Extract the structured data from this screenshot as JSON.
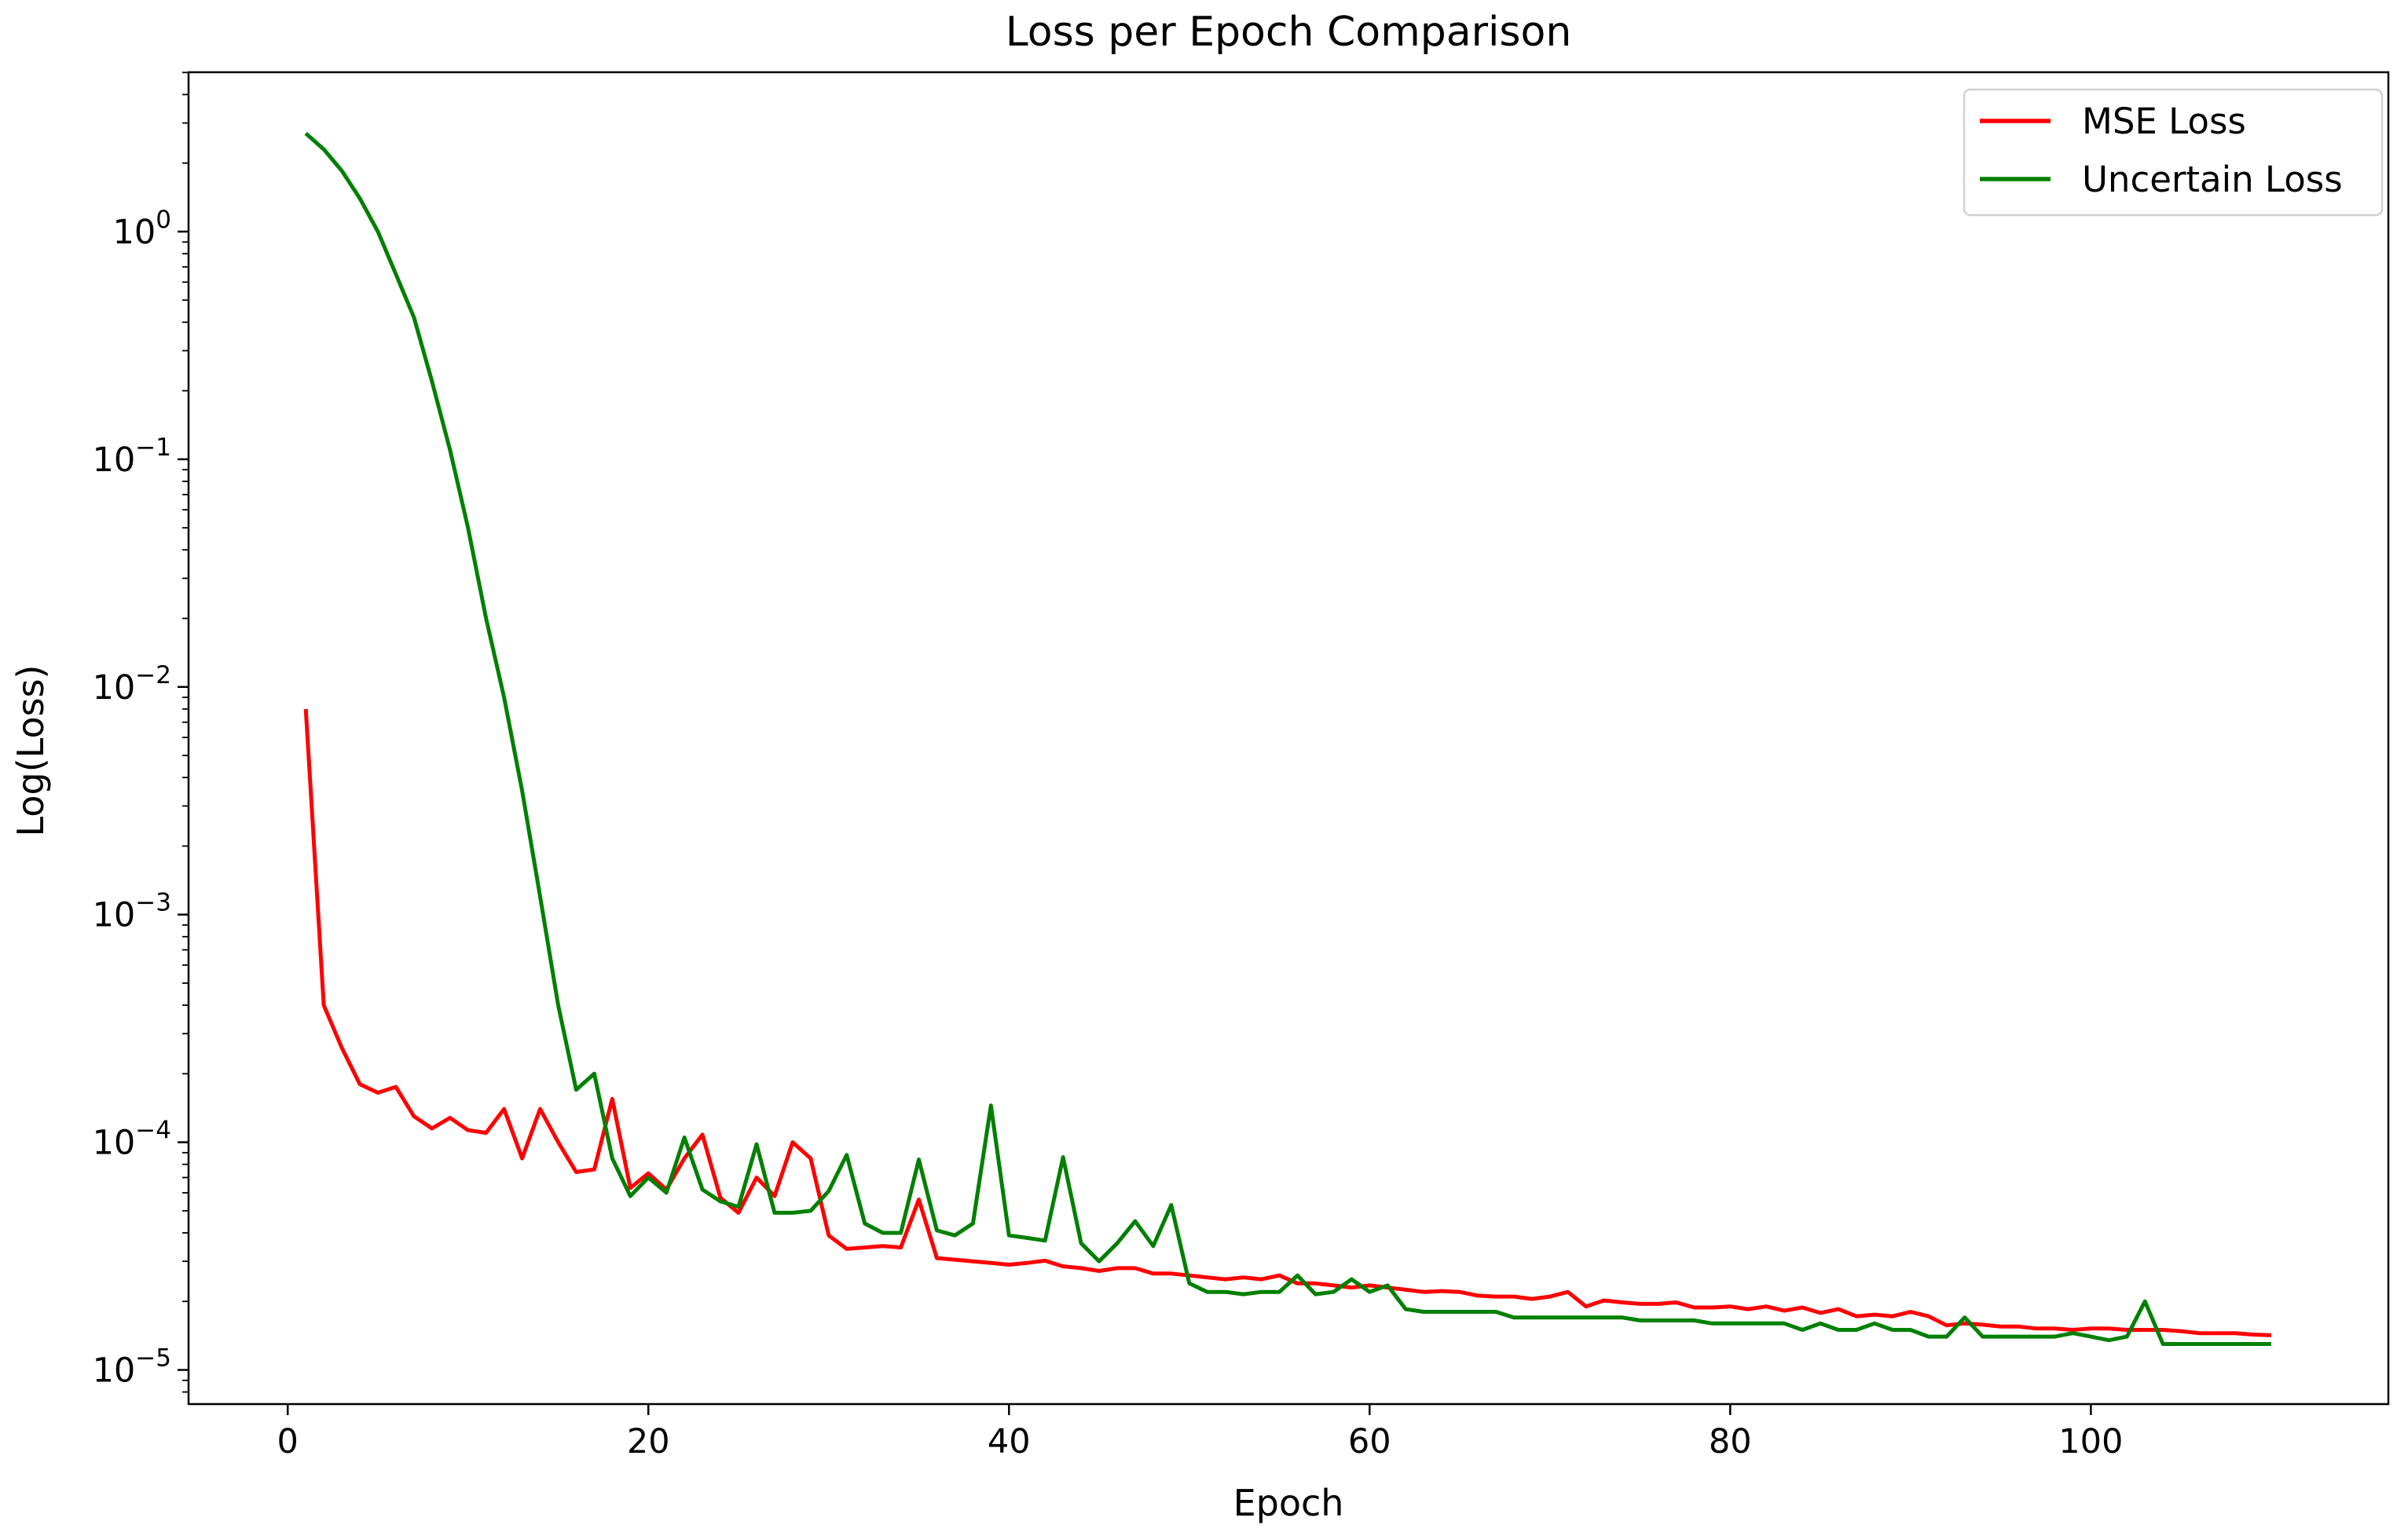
{
  "chart_data": {
    "type": "line",
    "title": "Loss per Epoch Comparison",
    "xlabel": "Epoch",
    "ylabel": "Log(Loss)",
    "xlim": [
      -5.5,
      116.5
    ],
    "ylim_log10": [
      -5.15,
      0.7
    ],
    "y_scale": "log",
    "grid": false,
    "legend_position": "top-right",
    "x_ticks": [
      {
        "value": 0,
        "label": "0"
      },
      {
        "value": 20,
        "label": "20"
      },
      {
        "value": 40,
        "label": "40"
      },
      {
        "value": 60,
        "label": "60"
      },
      {
        "value": 80,
        "label": "80"
      },
      {
        "value": 100,
        "label": "100"
      }
    ],
    "y_ticks": [
      {
        "exp": 0,
        "base": "10",
        "sup": "0"
      },
      {
        "exp": -1,
        "base": "10",
        "sup": "−1"
      },
      {
        "exp": -2,
        "base": "10",
        "sup": "−2"
      },
      {
        "exp": -3,
        "base": "10",
        "sup": "−3"
      },
      {
        "exp": -4,
        "base": "10",
        "sup": "−4"
      },
      {
        "exp": -5,
        "base": "10",
        "sup": "−5"
      }
    ],
    "series": [
      {
        "name": "MSE Loss",
        "color": "#ff0000",
        "x": [
          1,
          2,
          3,
          4,
          5,
          6,
          7,
          8,
          9,
          10,
          11,
          12,
          13,
          14,
          15,
          16,
          17,
          18,
          19,
          20,
          21,
          22,
          23,
          24,
          25,
          26,
          27,
          28,
          29,
          30,
          31,
          32,
          33,
          34,
          35,
          36,
          37,
          38,
          39,
          40,
          41,
          42,
          43,
          44,
          45,
          46,
          47,
          48,
          49,
          50,
          51,
          52,
          53,
          54,
          55,
          56,
          57,
          58,
          59,
          60,
          61,
          62,
          63,
          64,
          65,
          66,
          67,
          68,
          69,
          70,
          71,
          72,
          73,
          74,
          75,
          76,
          77,
          78,
          79,
          80,
          81,
          82,
          83,
          84,
          85,
          86,
          87,
          88,
          89,
          90,
          91,
          92,
          93,
          94,
          95,
          96,
          97,
          98,
          99,
          100,
          101,
          102,
          103,
          104,
          105,
          106,
          107,
          108,
          109,
          110
        ],
        "y": [
          0.008,
          0.0004,
          0.00026,
          0.00018,
          0.000165,
          0.000175,
          0.00013,
          0.000115,
          0.000128,
          0.000113,
          0.00011,
          0.00014,
          8.5e-05,
          0.00014,
          0.0001,
          7.4e-05,
          7.6e-05,
          0.000155,
          6.3e-05,
          7.3e-05,
          6.2e-05,
          8.5e-05,
          0.000108,
          5.7e-05,
          4.9e-05,
          7e-05,
          5.8e-05,
          0.0001,
          8.5e-05,
          3.9e-05,
          3.4e-05,
          3.45e-05,
          3.5e-05,
          3.45e-05,
          5.6e-05,
          3.1e-05,
          3.05e-05,
          3e-05,
          2.95e-05,
          2.9e-05,
          2.95e-05,
          3.02e-05,
          2.85e-05,
          2.8e-05,
          2.72e-05,
          2.8e-05,
          2.8e-05,
          2.65e-05,
          2.65e-05,
          2.6e-05,
          2.55e-05,
          2.5e-05,
          2.55e-05,
          2.5e-05,
          2.6e-05,
          2.4e-05,
          2.4e-05,
          2.35e-05,
          2.3e-05,
          2.35e-05,
          2.3e-05,
          2.25e-05,
          2.2e-05,
          2.22e-05,
          2.2e-05,
          2.12e-05,
          2.1e-05,
          2.1e-05,
          2.05e-05,
          2.1e-05,
          2.2e-05,
          1.9e-05,
          2.02e-05,
          1.98e-05,
          1.95e-05,
          1.95e-05,
          1.98e-05,
          1.88e-05,
          1.88e-05,
          1.9e-05,
          1.85e-05,
          1.9e-05,
          1.82e-05,
          1.88e-05,
          1.78e-05,
          1.85e-05,
          1.72e-05,
          1.75e-05,
          1.72e-05,
          1.8e-05,
          1.72e-05,
          1.57e-05,
          1.6e-05,
          1.58e-05,
          1.55e-05,
          1.55e-05,
          1.52e-05,
          1.52e-05,
          1.5e-05,
          1.52e-05,
          1.52e-05,
          1.5e-05,
          1.5e-05,
          1.5e-05,
          1.48e-05,
          1.45e-05,
          1.45e-05,
          1.45e-05,
          1.43e-05,
          1.42e-05
        ]
      },
      {
        "name": "Uncertain Loss",
        "color": "#008000",
        "x": [
          1,
          2,
          3,
          4,
          5,
          6,
          7,
          8,
          9,
          10,
          11,
          12,
          13,
          14,
          15,
          16,
          17,
          18,
          19,
          20,
          21,
          22,
          23,
          24,
          25,
          26,
          27,
          28,
          29,
          30,
          31,
          32,
          33,
          34,
          35,
          36,
          37,
          38,
          39,
          40,
          41,
          42,
          43,
          44,
          45,
          46,
          47,
          48,
          49,
          50,
          51,
          52,
          53,
          54,
          55,
          56,
          57,
          58,
          59,
          60,
          61,
          62,
          63,
          64,
          65,
          66,
          67,
          68,
          69,
          70,
          71,
          72,
          73,
          74,
          75,
          76,
          77,
          78,
          79,
          80,
          81,
          82,
          83,
          84,
          85,
          86,
          87,
          88,
          89,
          90,
          91,
          92,
          93,
          94,
          95,
          96,
          97,
          98,
          99,
          100,
          101,
          102,
          103,
          104,
          105,
          106,
          107,
          108,
          109,
          110
        ],
        "y": [
          2.7,
          2.3,
          1.85,
          1.4,
          1.0,
          0.65,
          0.42,
          0.22,
          0.11,
          0.05,
          0.02,
          0.009,
          0.0035,
          0.0012,
          0.0004,
          0.00017,
          0.0002,
          8.5e-05,
          5.8e-05,
          7e-05,
          6e-05,
          0.000105,
          6.2e-05,
          5.5e-05,
          5.2e-05,
          9.8e-05,
          4.9e-05,
          4.9e-05,
          5e-05,
          6.1e-05,
          8.8e-05,
          4.4e-05,
          4e-05,
          4e-05,
          8.4e-05,
          4.1e-05,
          3.9e-05,
          4.4e-05,
          0.000145,
          3.9e-05,
          3.8e-05,
          3.7e-05,
          8.6e-05,
          3.6e-05,
          3e-05,
          3.6e-05,
          4.5e-05,
          3.5e-05,
          5.3e-05,
          2.4e-05,
          2.2e-05,
          2.2e-05,
          2.15e-05,
          2.2e-05,
          2.2e-05,
          2.6e-05,
          2.15e-05,
          2.2e-05,
          2.5e-05,
          2.2e-05,
          2.35e-05,
          1.85e-05,
          1.8e-05,
          1.8e-05,
          1.8e-05,
          1.8e-05,
          1.8e-05,
          1.7e-05,
          1.7e-05,
          1.7e-05,
          1.7e-05,
          1.7e-05,
          1.7e-05,
          1.7e-05,
          1.65e-05,
          1.65e-05,
          1.65e-05,
          1.65e-05,
          1.6e-05,
          1.6e-05,
          1.6e-05,
          1.6e-05,
          1.6e-05,
          1.5e-05,
          1.6e-05,
          1.5e-05,
          1.5e-05,
          1.6e-05,
          1.5e-05,
          1.5e-05,
          1.4e-05,
          1.4e-05,
          1.7e-05,
          1.4e-05,
          1.4e-05,
          1.4e-05,
          1.4e-05,
          1.4e-05,
          1.45e-05,
          1.4e-05,
          1.35e-05,
          1.4e-05,
          2e-05,
          1.3e-05,
          1.3e-05,
          1.3e-05,
          1.3e-05,
          1.3e-05,
          1.3e-05,
          1.3e-05
        ]
      }
    ]
  }
}
